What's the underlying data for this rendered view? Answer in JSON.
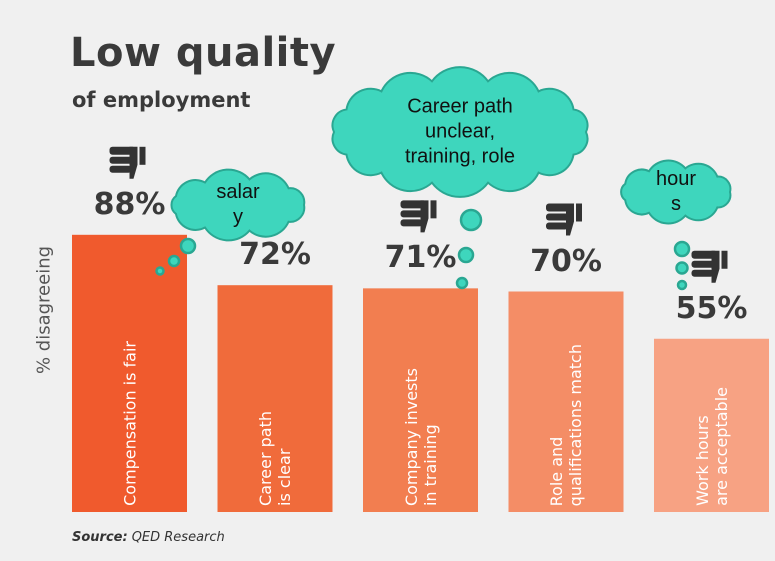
{
  "chart_data": {
    "type": "bar",
    "title": "Low quality",
    "subtitle": "of employment",
    "y_label": "% disagreeing",
    "categories": [
      "Compensation is fair",
      "Career path\nis clear",
      "Company invests\nin training",
      "Role and\nqualifications match",
      "Work hours\nare acceptable"
    ],
    "values": [
      88,
      72,
      71,
      70,
      55
    ],
    "value_labels": [
      "88%",
      "72%",
      "71%",
      "70%",
      "55%"
    ],
    "colors": [
      "#f05a2d",
      "#f06b3b",
      "#f27e50",
      "#f48d66",
      "#f7a283"
    ],
    "annotations": [
      {
        "text": "salar\ny",
        "bar": 0
      },
      {
        "text": "Career path\nunclear,\ntraining, role",
        "bar": 2
      },
      {
        "text": "hour\ns",
        "bar": 4
      }
    ],
    "source": {
      "label": "Source:",
      "text": "QED Research"
    }
  }
}
